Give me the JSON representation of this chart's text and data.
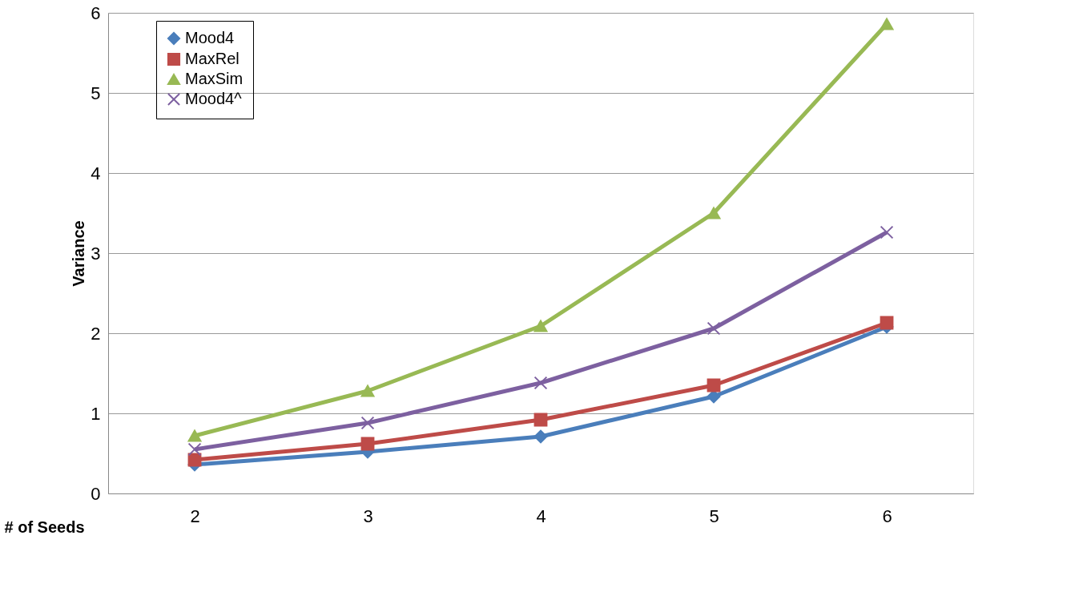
{
  "chart_data": {
    "type": "line",
    "xlabel": "# of Seeds",
    "ylabel": "Variance",
    "categories": [
      "2",
      "3",
      "4",
      "5",
      "6"
    ],
    "ylim": [
      0,
      6
    ],
    "yticks": [
      0,
      1,
      2,
      3,
      4,
      5,
      6
    ],
    "grid": "y",
    "legend": "top left",
    "line_style": "solid",
    "series": [
      {
        "name": "Mood4",
        "color": "#4a7ebb",
        "marker": "diamond",
        "values": [
          0.36,
          0.52,
          0.71,
          1.21,
          2.08
        ]
      },
      {
        "name": "MaxRel",
        "color": "#be4b48",
        "marker": "square",
        "values": [
          0.42,
          0.62,
          0.92,
          1.35,
          2.13
        ]
      },
      {
        "name": "MaxSim",
        "color": "#98b954",
        "marker": "triangle",
        "values": [
          0.72,
          1.28,
          2.09,
          3.5,
          5.86
        ]
      },
      {
        "name": "Mood4^",
        "color": "#7d60a0",
        "marker": "cross",
        "values": [
          0.55,
          0.88,
          1.38,
          2.06,
          3.26
        ]
      }
    ]
  }
}
